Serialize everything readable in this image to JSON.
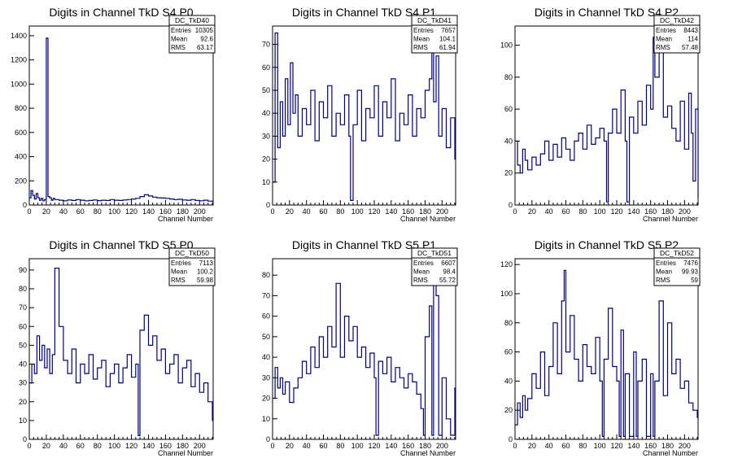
{
  "line_color": "#000080",
  "chart_data": [
    {
      "type": "line",
      "title": "Digits in Channel TkD S4 P0",
      "xlabel": "Channel Number",
      "ylabel": "",
      "xlim": [
        0,
        216
      ],
      "ylim": [
        0,
        1480
      ],
      "xticks": [
        0,
        20,
        40,
        60,
        80,
        100,
        120,
        140,
        160,
        180,
        200
      ],
      "yticks": [
        0,
        200,
        400,
        600,
        800,
        1000,
        1200,
        1400
      ],
      "stats": {
        "name": "DC_TkD40",
        "entries": "10305",
        "mean": "92.6",
        "rms": "63.17"
      },
      "x": [
        0,
        2,
        4,
        6,
        8,
        10,
        12,
        14,
        16,
        18,
        20,
        22,
        24,
        26,
        28,
        30,
        35,
        40,
        45,
        50,
        55,
        60,
        65,
        70,
        75,
        80,
        85,
        90,
        95,
        100,
        105,
        110,
        115,
        120,
        125,
        130,
        135,
        140,
        145,
        150,
        155,
        160,
        165,
        170,
        175,
        180,
        185,
        190,
        195,
        200,
        205,
        210,
        215
      ],
      "values": [
        60,
        120,
        80,
        50,
        95,
        60,
        40,
        55,
        35,
        45,
        1380,
        70,
        60,
        40,
        55,
        45,
        40,
        35,
        42,
        38,
        45,
        40,
        35,
        38,
        42,
        36,
        40,
        38,
        45,
        40,
        38,
        42,
        45,
        50,
        55,
        70,
        85,
        75,
        65,
        60,
        58,
        55,
        50,
        45,
        48,
        42,
        40,
        45,
        38,
        35,
        40,
        32,
        30
      ]
    },
    {
      "type": "line",
      "title": "Digits in Channel TkD S4 P1",
      "xlabel": "Channel Number",
      "ylabel": "",
      "xlim": [
        0,
        216
      ],
      "ylim": [
        0,
        78
      ],
      "xticks": [
        0,
        20,
        40,
        60,
        80,
        100,
        120,
        140,
        160,
        180,
        200
      ],
      "yticks": [
        0,
        10,
        20,
        30,
        40,
        50,
        60,
        70
      ],
      "stats": {
        "name": "DC_TkD41",
        "entries": "7657",
        "mean": "104.1",
        "rms": "61.94"
      },
      "x": [
        0,
        3,
        6,
        9,
        12,
        15,
        18,
        21,
        24,
        27,
        30,
        35,
        40,
        45,
        50,
        55,
        60,
        65,
        70,
        75,
        80,
        85,
        90,
        92,
        95,
        100,
        105,
        110,
        115,
        120,
        125,
        130,
        135,
        140,
        145,
        150,
        155,
        160,
        165,
        170,
        175,
        180,
        185,
        188,
        190,
        193,
        196,
        200,
        205,
        210,
        215
      ],
      "values": [
        10,
        75,
        25,
        45,
        30,
        55,
        35,
        62,
        40,
        48,
        30,
        42,
        35,
        50,
        28,
        45,
        38,
        52,
        30,
        40,
        35,
        48,
        30,
        2,
        35,
        50,
        28,
        42,
        38,
        52,
        30,
        45,
        38,
        55,
        28,
        40,
        35,
        48,
        30,
        42,
        38,
        50,
        55,
        70,
        45,
        65,
        30,
        42,
        25,
        38,
        20
      ]
    },
    {
      "type": "line",
      "title": "Digits in Channel TkD S4 P2",
      "xlabel": "Channel Number",
      "ylabel": "",
      "xlim": [
        0,
        216
      ],
      "ylim": [
        0,
        112
      ],
      "xticks": [
        0,
        20,
        40,
        60,
        80,
        100,
        120,
        140,
        160,
        180,
        200
      ],
      "yticks": [
        0,
        20,
        40,
        60,
        80,
        100
      ],
      "stats": {
        "name": "DC_TkD42",
        "entries": "8443",
        "mean": "114",
        "rms": "57.48"
      },
      "x": [
        0,
        3,
        6,
        9,
        12,
        15,
        20,
        25,
        30,
        35,
        40,
        45,
        50,
        55,
        60,
        65,
        70,
        75,
        80,
        85,
        90,
        95,
        100,
        105,
        108,
        110,
        115,
        120,
        125,
        130,
        132,
        135,
        140,
        145,
        150,
        155,
        160,
        163,
        165,
        170,
        175,
        180,
        185,
        190,
        195,
        200,
        205,
        208,
        210,
        213,
        216
      ],
      "values": [
        40,
        25,
        20,
        35,
        28,
        22,
        30,
        25,
        32,
        40,
        28,
        38,
        30,
        42,
        35,
        28,
        40,
        45,
        35,
        50,
        38,
        42,
        48,
        40,
        2,
        45,
        60,
        45,
        72,
        40,
        2,
        55,
        45,
        65,
        50,
        75,
        60,
        105,
        80,
        98,
        55,
        62,
        48,
        40,
        65,
        35,
        70,
        45,
        15,
        60,
        5
      ]
    },
    {
      "type": "line",
      "title": "Digits in Channel TkD S5 P0",
      "xlabel": "Channel Number",
      "ylabel": "",
      "xlim": [
        0,
        216
      ],
      "ylim": [
        0,
        96
      ],
      "xticks": [
        0,
        20,
        40,
        60,
        80,
        100,
        120,
        140,
        160,
        180,
        200
      ],
      "yticks": [
        0,
        10,
        20,
        30,
        40,
        50,
        60,
        70,
        80,
        90
      ],
      "stats": {
        "name": "DC_TkD50",
        "entries": "7113",
        "mean": "100.2",
        "rms": "59.98"
      },
      "x": [
        0,
        3,
        6,
        9,
        12,
        15,
        18,
        21,
        24,
        27,
        30,
        35,
        40,
        45,
        50,
        55,
        60,
        65,
        70,
        75,
        80,
        85,
        90,
        95,
        100,
        105,
        110,
        115,
        120,
        125,
        128,
        130,
        135,
        140,
        145,
        150,
        155,
        160,
        165,
        170,
        175,
        180,
        185,
        190,
        195,
        200,
        205,
        210,
        215
      ],
      "values": [
        30,
        40,
        35,
        55,
        42,
        50,
        38,
        48,
        35,
        45,
        91,
        60,
        42,
        35,
        48,
        30,
        40,
        35,
        45,
        32,
        38,
        42,
        28,
        35,
        40,
        30,
        38,
        45,
        33,
        40,
        2,
        58,
        66,
        50,
        55,
        42,
        48,
        35,
        40,
        45,
        30,
        38,
        42,
        28,
        35,
        25,
        30,
        20,
        10
      ]
    },
    {
      "type": "line",
      "title": "Digits in Channel TkD S5 P1",
      "xlabel": "Channel Number",
      "ylabel": "",
      "xlim": [
        0,
        216
      ],
      "ylim": [
        0,
        88
      ],
      "xticks": [
        0,
        20,
        40,
        60,
        80,
        100,
        120,
        140,
        160,
        180,
        200
      ],
      "yticks": [
        0,
        10,
        20,
        30,
        40,
        50,
        60,
        70,
        80
      ],
      "stats": {
        "name": "DC_TkD51",
        "entries": "6607",
        "mean": "98.4",
        "rms": "55.72"
      },
      "x": [
        0,
        3,
        6,
        9,
        12,
        15,
        20,
        25,
        30,
        35,
        40,
        45,
        50,
        55,
        60,
        65,
        70,
        75,
        80,
        85,
        90,
        95,
        100,
        105,
        110,
        115,
        120,
        122,
        125,
        130,
        135,
        140,
        145,
        150,
        155,
        160,
        165,
        170,
        175,
        178,
        180,
        185,
        188,
        190,
        193,
        196,
        200,
        205,
        210,
        215
      ],
      "values": [
        20,
        35,
        25,
        30,
        22,
        28,
        18,
        25,
        30,
        38,
        32,
        45,
        35,
        50,
        40,
        55,
        45,
        76,
        40,
        60,
        48,
        55,
        40,
        45,
        35,
        42,
        30,
        2,
        38,
        32,
        40,
        28,
        35,
        30,
        25,
        32,
        28,
        22,
        15,
        2,
        50,
        65,
        2,
        80,
        70,
        2,
        30,
        10,
        2,
        25
      ]
    },
    {
      "type": "line",
      "title": "Digits in Channel TkD S5 P2",
      "xlabel": "Channel Number",
      "ylabel": "",
      "xlim": [
        0,
        216
      ],
      "ylim": [
        0,
        124
      ],
      "xticks": [
        0,
        20,
        40,
        60,
        80,
        100,
        120,
        140,
        160,
        180,
        200
      ],
      "yticks": [
        0,
        20,
        40,
        60,
        80,
        100,
        120
      ],
      "stats": {
        "name": "DC_TkD52",
        "entries": "7476",
        "mean": "99.93",
        "rms": "59"
      },
      "x": [
        0,
        3,
        6,
        9,
        12,
        15,
        20,
        25,
        30,
        35,
        40,
        45,
        50,
        55,
        58,
        60,
        65,
        70,
        75,
        80,
        85,
        90,
        95,
        100,
        103,
        105,
        110,
        115,
        120,
        123,
        125,
        128,
        130,
        135,
        140,
        143,
        145,
        150,
        155,
        160,
        163,
        165,
        170,
        175,
        180,
        185,
        190,
        195,
        200,
        205,
        210,
        215
      ],
      "values": [
        10,
        25,
        15,
        30,
        20,
        28,
        45,
        35,
        60,
        30,
        50,
        80,
        45,
        95,
        116,
        60,
        85,
        55,
        40,
        65,
        50,
        45,
        70,
        40,
        2,
        55,
        90,
        50,
        40,
        2,
        75,
        2,
        45,
        2,
        60,
        2,
        40,
        55,
        2,
        45,
        2,
        40,
        95,
        30,
        80,
        45,
        55,
        35,
        40,
        25,
        20,
        15
      ]
    }
  ]
}
